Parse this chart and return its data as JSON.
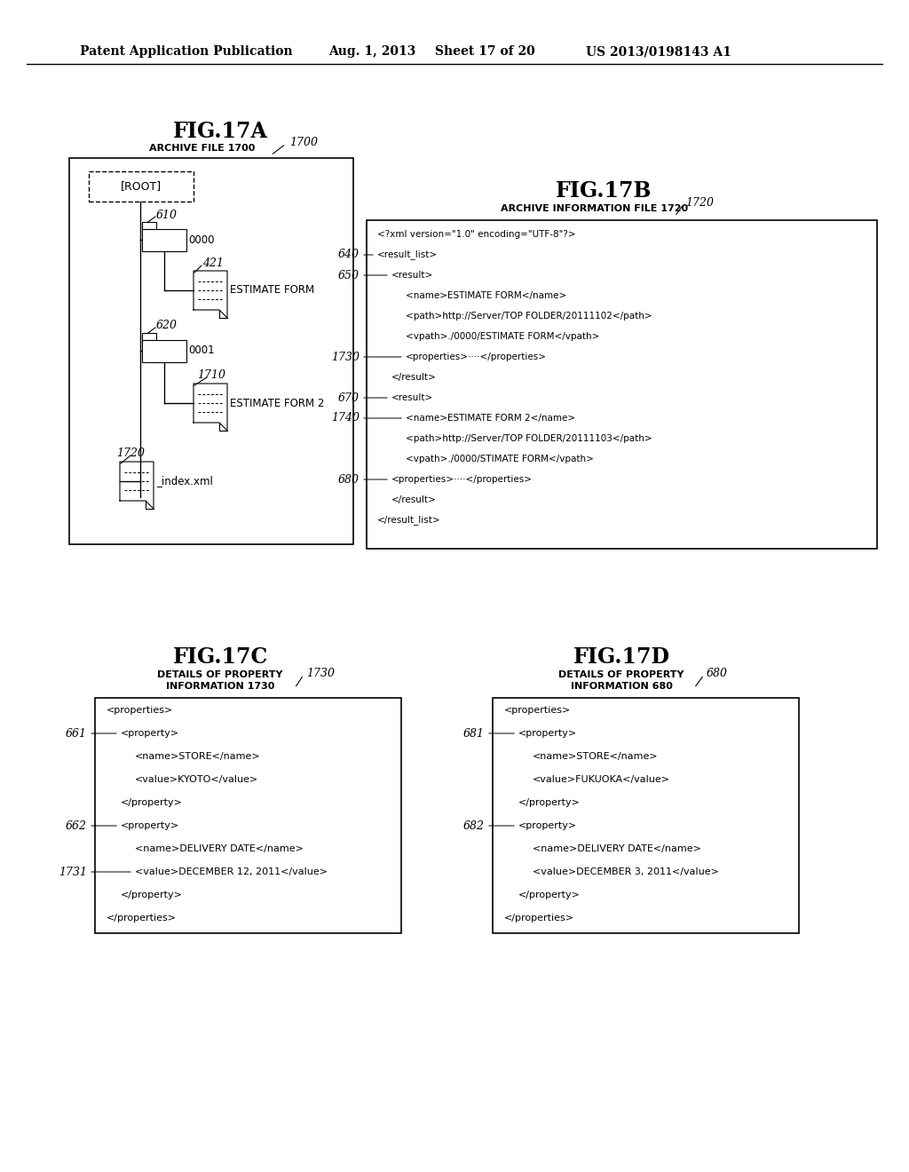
{
  "bg_color": "#ffffff",
  "header_text": "Patent Application Publication",
  "header_date": "Aug. 1, 2013",
  "header_sheet": "Sheet 17 of 20",
  "header_patent": "US 2013/0198143 A1",
  "fig17a_title": "FIG.17A",
  "fig17a_subtitle": "ARCHIVE FILE 1700",
  "fig17a_label": "1700",
  "fig17b_title": "FIG.17B",
  "fig17b_subtitle": "ARCHIVE INFORMATION FILE 1720",
  "fig17b_label": "1720",
  "fig17c_title": "FIG.17C",
  "fig17c_subtitle1": "DETAILS OF PROPERTY",
  "fig17c_subtitle2": "INFORMATION 1730",
  "fig17c_label": "1730",
  "fig17d_title": "FIG.17D",
  "fig17d_subtitle1": "DETAILS OF PROPERTY",
  "fig17d_subtitle2": "INFORMATION 680",
  "fig17d_label": "680"
}
